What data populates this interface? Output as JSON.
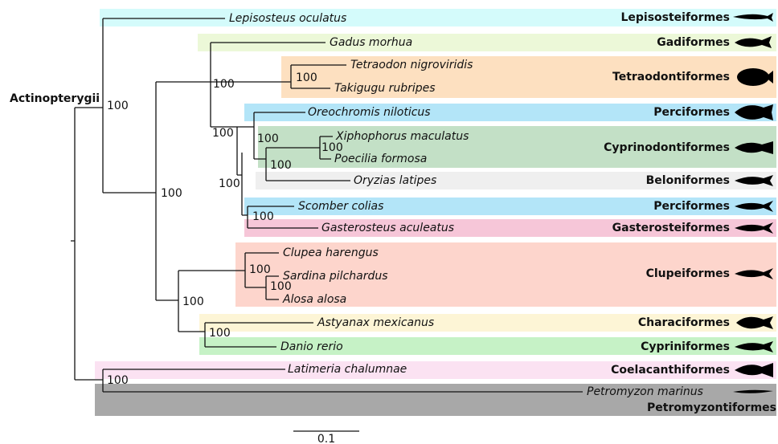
{
  "root_label": "Actinopterygii",
  "taxa": [
    "Lepisosteus oculatus",
    "Gadus morhua",
    "Tetraodon nigroviridis",
    "Takigugu rubripes",
    "Oreochromis niloticus",
    "Xiphophorus maculatus",
    "Poecilia formosa",
    "Oryzias latipes",
    "Scomber colias",
    "Gasterosteus aculeatus",
    "Clupea harengus",
    "Sardina pilchardus",
    "Alosa alosa",
    "Astyanax mexicanus",
    "Danio rerio",
    "Latimeria chalumnae",
    "Petromyzon marinus"
  ],
  "orders": [
    "Lepisosteiformes",
    "Gadiformes",
    "Tetraodontiformes",
    "Perciformes",
    "Cyprinodontiformes",
    "Beloniformes",
    "Perciformes",
    "Gasterosteiformes",
    "Clupeiformes",
    "Characiformes",
    "Cypriniformes",
    "Coelacanthiformes",
    "Petromyzontiformes"
  ],
  "support_values": [
    "100",
    "100",
    "100",
    "100",
    "100",
    "100",
    "100",
    "100",
    "100",
    "100",
    "100",
    "100",
    "100",
    "100",
    "100"
  ],
  "scale_label": "0.1"
}
